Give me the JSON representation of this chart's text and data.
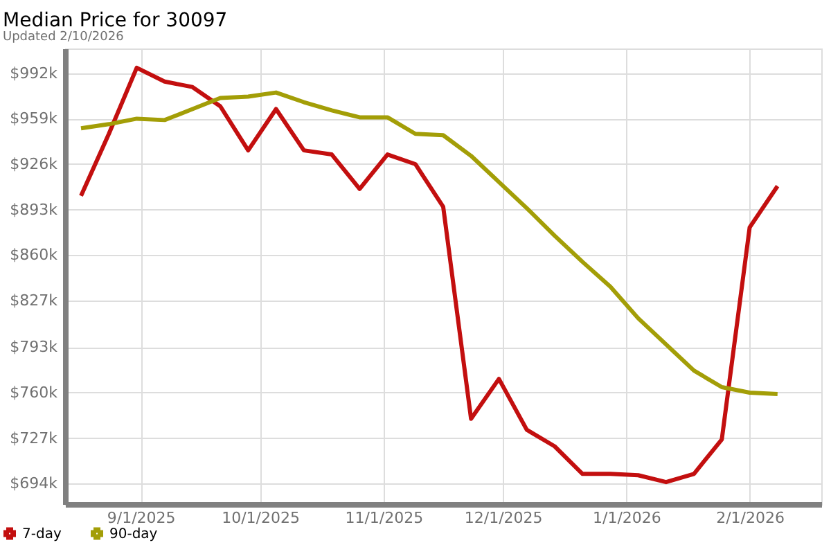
{
  "chart_data": {
    "type": "line",
    "title": "Median Price for 30097",
    "subtitle": "Updated 2/10/2026",
    "x": [
      "2025-08-17",
      "2025-08-24",
      "2025-08-31",
      "2025-09-07",
      "2025-09-14",
      "2025-09-21",
      "2025-09-28",
      "2025-10-05",
      "2025-10-12",
      "2025-10-19",
      "2025-10-26",
      "2025-11-02",
      "2025-11-09",
      "2025-11-16",
      "2025-11-23",
      "2025-11-30",
      "2025-12-07",
      "2025-12-14",
      "2025-12-21",
      "2025-12-28",
      "2026-01-04",
      "2026-01-11",
      "2026-01-18",
      "2026-01-25",
      "2026-02-01",
      "2026-02-08"
    ],
    "series": [
      {
        "name": "7-day",
        "color": "#c30f0f",
        "values": [
          903000,
          948000,
          996000,
          986000,
          982000,
          968000,
          936000,
          966000,
          936000,
          933000,
          908000,
          933000,
          926000,
          895000,
          741000,
          770000,
          733000,
          721000,
          701000,
          701000,
          700000,
          695000,
          701000,
          726000,
          880000,
          910000
        ]
      },
      {
        "name": "90-day",
        "color": "#a39e07",
        "values": [
          952000,
          955000,
          959000,
          958000,
          966000,
          974000,
          975000,
          978000,
          971000,
          965000,
          960000,
          960000,
          948000,
          947000,
          932000,
          913000,
          894000,
          874000,
          855000,
          837000,
          814000,
          795000,
          776000,
          764000,
          760000,
          759000
        ]
      }
    ],
    "xlim": [
      "2025-08-13",
      "2026-02-19"
    ],
    "xticks": [
      {
        "value": "2025-09-01",
        "label": "9/1/2025"
      },
      {
        "value": "2025-10-01",
        "label": "10/1/2025"
      },
      {
        "value": "2025-11-01",
        "label": "11/1/2025"
      },
      {
        "value": "2025-12-01",
        "label": "12/1/2025"
      },
      {
        "value": "2026-01-01",
        "label": "1/1/2026"
      },
      {
        "value": "2026-02-01",
        "label": "2/1/2026"
      }
    ],
    "ylim": [
      679000,
      1010000
    ],
    "yticks": [
      {
        "value": 694000,
        "label": "$694k"
      },
      {
        "value": 727000,
        "label": "$727k"
      },
      {
        "value": 760000,
        "label": "$760k"
      },
      {
        "value": 793000,
        "label": "$793k"
      },
      {
        "value": 827000,
        "label": "$827k"
      },
      {
        "value": 860000,
        "label": "$860k"
      },
      {
        "value": 893000,
        "label": "$893k"
      },
      {
        "value": 926000,
        "label": "$926k"
      },
      {
        "value": 959000,
        "label": "$959k"
      },
      {
        "value": 992000,
        "label": "$992k"
      }
    ],
    "grid": true,
    "legend": "bottom left",
    "marker": "none",
    "line_style": "solid"
  }
}
